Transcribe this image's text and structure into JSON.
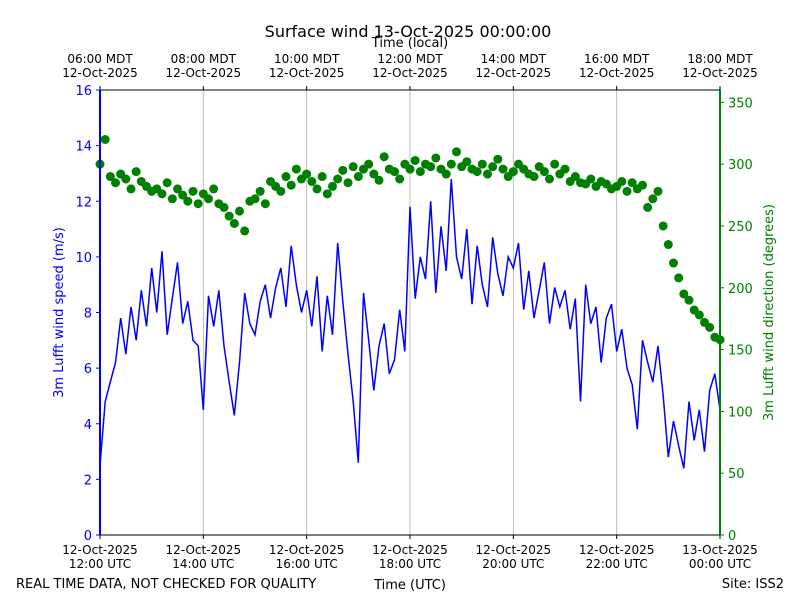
{
  "chart_data": {
    "type": "line-scatter",
    "title": "Surface wind 13-Oct-2025 00:00:00",
    "xlabel": "Time (UTC)",
    "x2label": "Time (local)",
    "ylabel": "3m Lufft wind speed (m/s)",
    "y2label": "3m Lufft wind direction (degrees)",
    "note": "REAL TIME DATA, NOT CHECKED FOR QUALITY",
    "site": "Site: ISS2",
    "grid": true,
    "xlim": [
      "2025-10-12T12:00",
      "2025-10-13T00:00"
    ],
    "xticks": [
      {
        "value": "2025-10-12T12:00",
        "label": "12-Oct-2025\n12:00 UTC"
      },
      {
        "value": "2025-10-12T14:00",
        "label": "12-Oct-2025\n14:00 UTC"
      },
      {
        "value": "2025-10-12T16:00",
        "label": "12-Oct-2025\n16:00 UTC"
      },
      {
        "value": "2025-10-12T18:00",
        "label": "12-Oct-2025\n18:00 UTC"
      },
      {
        "value": "2025-10-12T20:00",
        "label": "12-Oct-2025\n20:00 UTC"
      },
      {
        "value": "2025-10-12T22:00",
        "label": "12-Oct-2025\n22:00 UTC"
      },
      {
        "value": "2025-10-13T00:00",
        "label": "13-Oct-2025\n00:00 UTC"
      }
    ],
    "x2lim": [
      "2025-10-12T06:00",
      "2025-10-12T18:00"
    ],
    "x2ticks": [
      {
        "value": "2025-10-12T06:00",
        "label": "06:00 MDT\n12-Oct-2025"
      },
      {
        "value": "2025-10-12T08:00",
        "label": "08:00 MDT\n12-Oct-2025"
      },
      {
        "value": "2025-10-12T10:00",
        "label": "10:00 MDT\n12-Oct-2025"
      },
      {
        "value": "2025-10-12T12:00",
        "label": "12:00 MDT\n12-Oct-2025"
      },
      {
        "value": "2025-10-12T14:00",
        "label": "14:00 MDT\n12-Oct-2025"
      },
      {
        "value": "2025-10-12T16:00",
        "label": "16:00 MDT\n12-Oct-2025"
      },
      {
        "value": "2025-10-12T18:00",
        "label": "18:00 MDT\n12-Oct-2025"
      }
    ],
    "ylim": [
      0,
      16
    ],
    "yticks": [
      0,
      2,
      4,
      6,
      8,
      10,
      12,
      14,
      16
    ],
    "y2lim": [
      0,
      360
    ],
    "y2ticks": [
      0,
      50,
      100,
      150,
      200,
      250,
      300,
      350
    ],
    "x": [
      "2025-10-12T12:00",
      "2025-10-12T12:06",
      "2025-10-12T12:12",
      "2025-10-12T12:18",
      "2025-10-12T12:24",
      "2025-10-12T12:30",
      "2025-10-12T12:36",
      "2025-10-12T12:42",
      "2025-10-12T12:48",
      "2025-10-12T12:54",
      "2025-10-12T13:00",
      "2025-10-12T13:06",
      "2025-10-12T13:12",
      "2025-10-12T13:18",
      "2025-10-12T13:24",
      "2025-10-12T13:30",
      "2025-10-12T13:36",
      "2025-10-12T13:42",
      "2025-10-12T13:48",
      "2025-10-12T13:54",
      "2025-10-12T14:00",
      "2025-10-12T14:06",
      "2025-10-12T14:12",
      "2025-10-12T14:18",
      "2025-10-12T14:24",
      "2025-10-12T14:30",
      "2025-10-12T14:36",
      "2025-10-12T14:42",
      "2025-10-12T14:48",
      "2025-10-12T14:54",
      "2025-10-12T15:00",
      "2025-10-12T15:06",
      "2025-10-12T15:12",
      "2025-10-12T15:18",
      "2025-10-12T15:24",
      "2025-10-12T15:30",
      "2025-10-12T15:36",
      "2025-10-12T15:42",
      "2025-10-12T15:48",
      "2025-10-12T15:54",
      "2025-10-12T16:00",
      "2025-10-12T16:06",
      "2025-10-12T16:12",
      "2025-10-12T16:18",
      "2025-10-12T16:24",
      "2025-10-12T16:30",
      "2025-10-12T16:36",
      "2025-10-12T16:42",
      "2025-10-12T16:48",
      "2025-10-12T16:54",
      "2025-10-12T17:00",
      "2025-10-12T17:06",
      "2025-10-12T17:12",
      "2025-10-12T17:18",
      "2025-10-12T17:24",
      "2025-10-12T17:30",
      "2025-10-12T17:36",
      "2025-10-12T17:42",
      "2025-10-12T17:48",
      "2025-10-12T17:54",
      "2025-10-12T18:00",
      "2025-10-12T18:06",
      "2025-10-12T18:12",
      "2025-10-12T18:18",
      "2025-10-12T18:24",
      "2025-10-12T18:30",
      "2025-10-12T18:36",
      "2025-10-12T18:42",
      "2025-10-12T18:48",
      "2025-10-12T18:54",
      "2025-10-12T19:00",
      "2025-10-12T19:06",
      "2025-10-12T19:12",
      "2025-10-12T19:18",
      "2025-10-12T19:24",
      "2025-10-12T19:30",
      "2025-10-12T19:36",
      "2025-10-12T19:42",
      "2025-10-12T19:48",
      "2025-10-12T19:54",
      "2025-10-12T20:00",
      "2025-10-12T20:06",
      "2025-10-12T20:12",
      "2025-10-12T20:18",
      "2025-10-12T20:24",
      "2025-10-12T20:30",
      "2025-10-12T20:36",
      "2025-10-12T20:42",
      "2025-10-12T20:48",
      "2025-10-12T20:54",
      "2025-10-12T21:00",
      "2025-10-12T21:06",
      "2025-10-12T21:12",
      "2025-10-12T21:18",
      "2025-10-12T21:24",
      "2025-10-12T21:30",
      "2025-10-12T21:36",
      "2025-10-12T21:42",
      "2025-10-12T21:48",
      "2025-10-12T21:54",
      "2025-10-12T22:00",
      "2025-10-12T22:06",
      "2025-10-12T22:12",
      "2025-10-12T22:18",
      "2025-10-12T22:24",
      "2025-10-12T22:30",
      "2025-10-12T22:36",
      "2025-10-12T22:42",
      "2025-10-12T22:48",
      "2025-10-12T22:54",
      "2025-10-12T23:00",
      "2025-10-12T23:06",
      "2025-10-12T23:12",
      "2025-10-12T23:18",
      "2025-10-12T23:24",
      "2025-10-12T23:30",
      "2025-10-12T23:36",
      "2025-10-12T23:42",
      "2025-10-12T23:48",
      "2025-10-12T23:54",
      "2025-10-13T00:00"
    ],
    "series": [
      {
        "name": "3m Lufft wind speed (m/s)",
        "color": "#0000ff",
        "kind": "line",
        "axis": "y",
        "values": [
          2.5,
          4.8,
          5.5,
          6.2,
          7.8,
          6.5,
          8.2,
          7.0,
          8.8,
          7.5,
          9.6,
          8.0,
          10.2,
          7.2,
          8.5,
          9.8,
          7.6,
          8.4,
          7.0,
          6.8,
          4.5,
          8.6,
          7.5,
          8.8,
          6.8,
          5.5,
          4.3,
          6.2,
          8.7,
          7.6,
          7.2,
          8.4,
          9.0,
          7.8,
          8.9,
          9.6,
          8.2,
          10.4,
          9.0,
          8.0,
          8.8,
          7.5,
          9.3,
          6.6,
          8.6,
          7.2,
          10.5,
          8.4,
          6.5,
          4.8,
          2.6,
          8.7,
          7.0,
          5.2,
          6.8,
          7.6,
          5.8,
          6.3,
          8.1,
          6.6,
          11.8,
          8.5,
          10.0,
          9.2,
          12.0,
          8.7,
          11.1,
          9.5,
          12.8,
          10.0,
          9.2,
          11.0,
          8.3,
          10.4,
          9.0,
          8.2,
          10.7,
          9.4,
          8.6,
          10.0,
          9.6,
          10.5,
          8.1,
          9.5,
          7.8,
          8.8,
          9.8,
          7.6,
          8.9,
          8.2,
          8.8,
          7.4,
          8.5,
          4.8,
          9.0,
          7.6,
          8.2,
          6.2,
          7.8,
          8.3,
          6.6,
          7.4,
          6.0,
          5.4,
          3.8,
          7.0,
          6.2,
          5.5,
          6.8,
          5.0,
          2.8,
          4.1,
          3.2,
          2.4,
          4.8,
          3.4,
          4.5,
          3.0,
          5.2,
          5.8,
          4.5
        ]
      },
      {
        "name": "3m Lufft wind direction (degrees)",
        "color": "#008000",
        "kind": "scatter",
        "axis": "y2",
        "values": [
          300,
          320,
          290,
          285,
          292,
          288,
          280,
          294,
          286,
          282,
          278,
          280,
          276,
          285,
          272,
          280,
          275,
          270,
          278,
          268,
          276,
          272,
          280,
          268,
          265,
          258,
          252,
          262,
          246,
          270,
          272,
          278,
          268,
          286,
          282,
          278,
          290,
          283,
          296,
          288,
          292,
          286,
          280,
          290,
          276,
          282,
          288,
          295,
          285,
          298,
          290,
          296,
          300,
          292,
          287,
          306,
          296,
          294,
          288,
          300,
          296,
          303,
          294,
          300,
          298,
          305,
          296,
          292,
          300,
          310,
          298,
          302,
          296,
          294,
          300,
          292,
          298,
          304,
          296,
          290,
          294,
          300,
          296,
          292,
          290,
          298,
          294,
          288,
          300,
          292,
          296,
          286,
          290,
          285,
          284,
          288,
          282,
          286,
          284,
          280,
          282,
          286,
          278,
          285,
          280,
          283,
          265,
          272,
          278,
          250,
          235,
          220,
          208,
          195,
          190,
          182,
          178,
          172,
          168,
          160,
          158
        ]
      }
    ]
  }
}
